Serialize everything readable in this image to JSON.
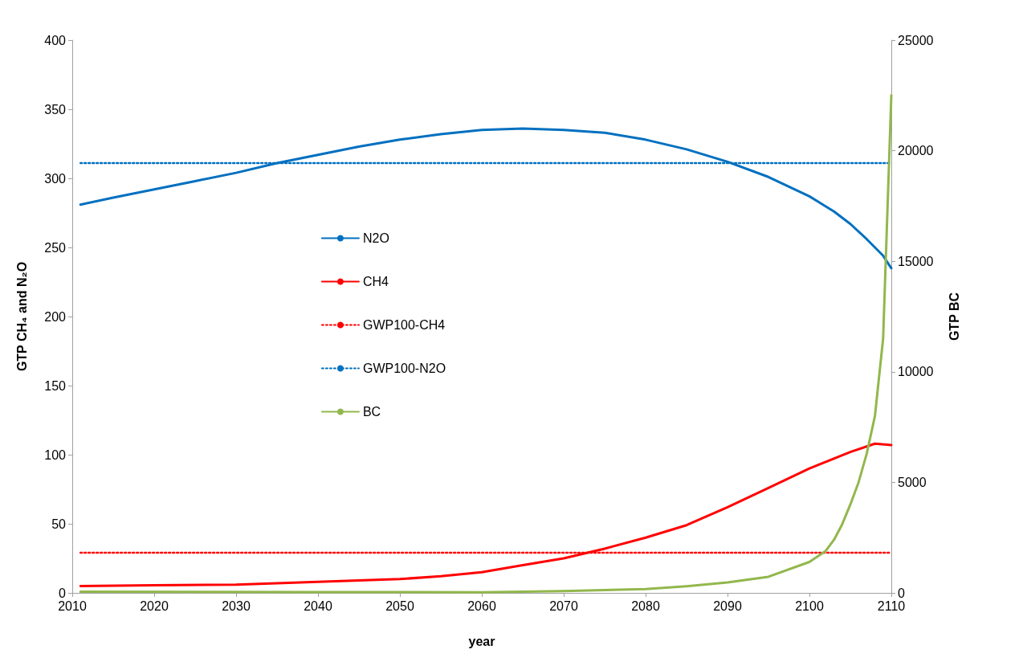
{
  "chart_data": {
    "type": "line",
    "xlabel": "year",
    "ylabel": "GTP CH₄ and N₂O",
    "y2label": "GTP BC",
    "xlim": [
      2010,
      2110
    ],
    "xticks": [
      2010,
      2020,
      2030,
      2040,
      2050,
      2060,
      2070,
      2080,
      2090,
      2100,
      2110
    ],
    "ylim": [
      0,
      400
    ],
    "yticks": [
      0,
      50,
      100,
      150,
      200,
      250,
      300,
      350,
      400
    ],
    "y2lim": [
      0,
      25000
    ],
    "y2ticks": [
      0,
      5000,
      10000,
      15000,
      20000,
      25000
    ],
    "grid": false,
    "legend": "left",
    "marker": "none",
    "series": [
      {
        "name": "N2O",
        "color": "#0070c0",
        "line_style": "solid",
        "x": [
          2011,
          2015,
          2020,
          2025,
          2030,
          2035,
          2040,
          2045,
          2050,
          2055,
          2060,
          2065,
          2070,
          2075,
          2080,
          2085,
          2090,
          2095,
          2100,
          2103,
          2105,
          2107,
          2109,
          2110
        ],
        "values": [
          281,
          286,
          292,
          298,
          304,
          311,
          317,
          323,
          328,
          332,
          335,
          336,
          335,
          333,
          328,
          321,
          312,
          301,
          287,
          276,
          267,
          256,
          244,
          235
        ]
      },
      {
        "name": "CH4",
        "color": "#ff0000",
        "line_style": "solid",
        "x": [
          2011,
          2020,
          2030,
          2040,
          2045,
          2050,
          2055,
          2060,
          2065,
          2070,
          2075,
          2080,
          2085,
          2090,
          2095,
          2100,
          2105,
          2108,
          2110
        ],
        "values": [
          5,
          5.5,
          6,
          8,
          9,
          10,
          12,
          15,
          20,
          25,
          32,
          40,
          49,
          62,
          76,
          90,
          102,
          108,
          107
        ]
      },
      {
        "name": "GWP100-CH4",
        "color": "#ff0000",
        "line_style": "dotted",
        "x": [
          2011,
          2110
        ],
        "values": [
          29,
          29
        ]
      },
      {
        "name": "GWP100-N2O",
        "color": "#0070c0",
        "line_style": "dotted",
        "x": [
          2011,
          2110
        ],
        "values": [
          311,
          311
        ]
      },
      {
        "name": "BC",
        "color": "#92b74c",
        "line_style": "solid",
        "axis": "y2",
        "x": [
          2011,
          2040,
          2060,
          2070,
          2080,
          2085,
          2090,
          2095,
          2100,
          2102,
          2103,
          2104,
          2105,
          2106,
          2107,
          2108,
          2109,
          2110
        ],
        "values": [
          50,
          40,
          30,
          80,
          170,
          300,
          470,
          730,
          1400,
          1900,
          2400,
          3100,
          4000,
          5000,
          6300,
          8000,
          11500,
          22500
        ]
      }
    ]
  }
}
